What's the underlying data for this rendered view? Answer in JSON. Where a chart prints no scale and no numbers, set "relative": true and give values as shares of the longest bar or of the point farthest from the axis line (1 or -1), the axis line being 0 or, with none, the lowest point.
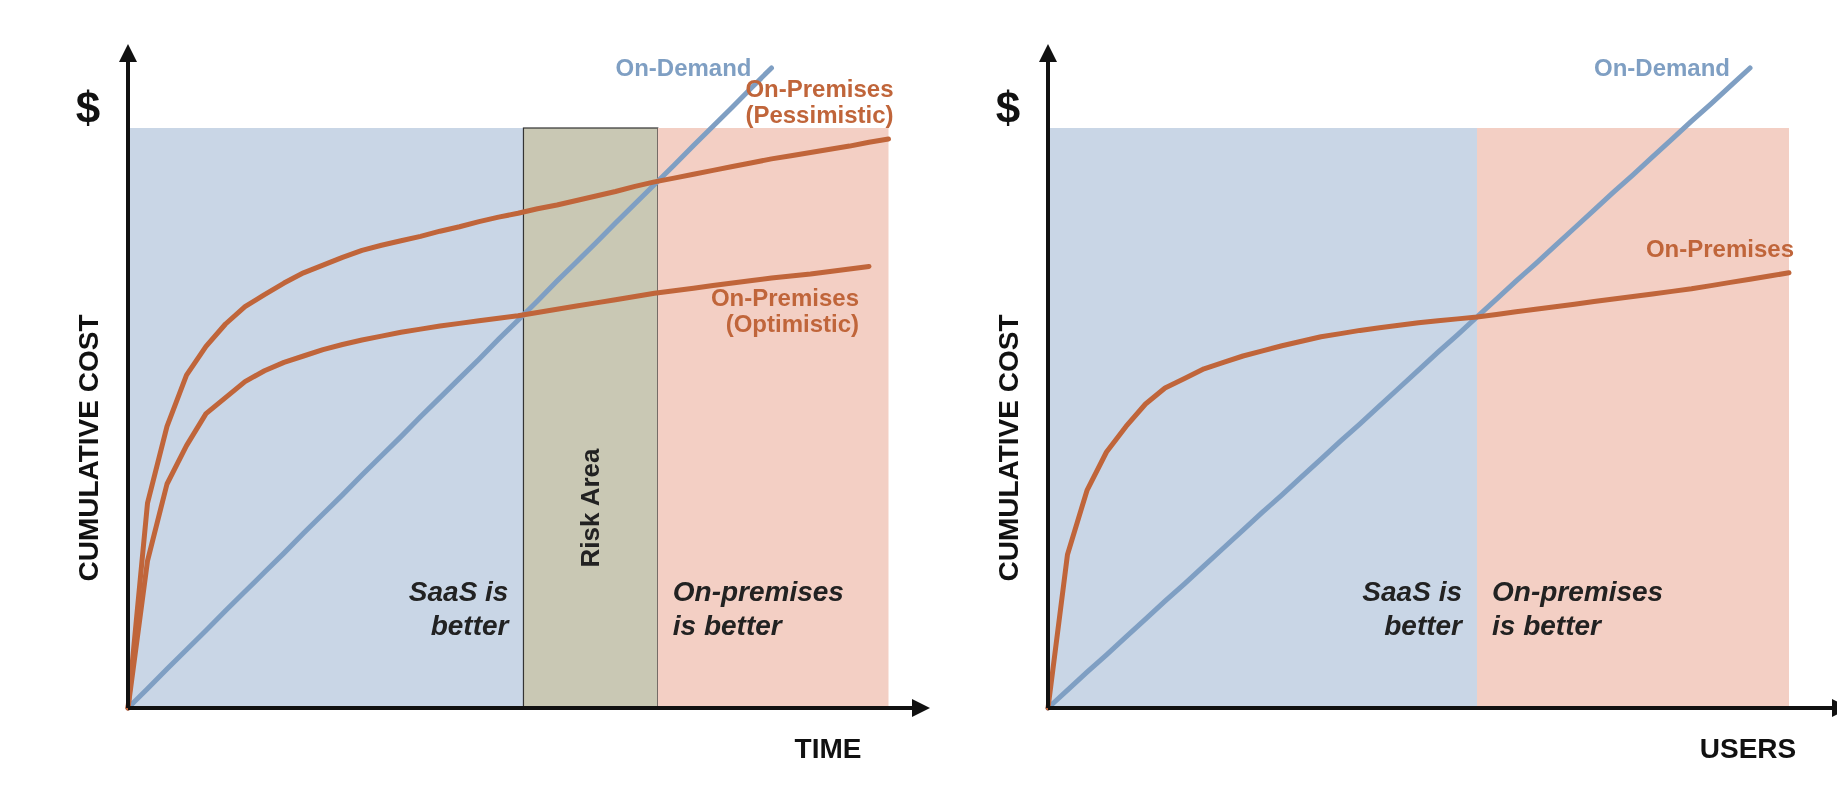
{
  "chart_data": [
    {
      "type": "line",
      "relative": true,
      "xlabel": "TIME",
      "ylabel": "CUMULATIVE COST",
      "annotations": [
        "$",
        "SaaS is better",
        "Risk Area",
        "On-premises is better"
      ],
      "marker": "none",
      "line_style": "solid",
      "categories": [
        null,
        null,
        null,
        null,
        null,
        null,
        null,
        null,
        null,
        null,
        null,
        null,
        null,
        null,
        null,
        null,
        null,
        null,
        null,
        null,
        null,
        null,
        null,
        null,
        null,
        null,
        null,
        null,
        null,
        null,
        null,
        null,
        null,
        null,
        null,
        null,
        null,
        null,
        null,
        null,
        null
      ],
      "series": [
        {
          "name": "On-Demand",
          "color": "#7f9fc3",
          "values": [
            0,
            0.03,
            0.061,
            0.091,
            0.121,
            0.152,
            0.182,
            0.212,
            0.242,
            0.273,
            0.303,
            0.333,
            0.364,
            0.394,
            0.424,
            0.455,
            0.485,
            0.515,
            0.545,
            0.576,
            0.606,
            0.636,
            0.667,
            0.697,
            0.727,
            0.758,
            0.788,
            0.818,
            0.848,
            0.879,
            0.909,
            0.939,
            0.97,
            1,
            null,
            null,
            null,
            null,
            null,
            null,
            null
          ]
        },
        {
          "name": "On-Premises (Pessimistic)",
          "color": "#c0653a",
          "values": [
            0,
            0.32,
            0.44,
            0.52,
            0.565,
            0.6,
            0.627,
            0.646,
            0.664,
            0.68,
            0.692,
            0.704,
            0.715,
            0.723,
            0.73,
            0.737,
            0.745,
            0.752,
            0.76,
            0.767,
            0.773,
            0.78,
            0.786,
            0.793,
            0.8,
            0.807,
            0.815,
            0.822,
            0.828,
            0.834,
            0.84,
            0.846,
            0.852,
            0.858,
            0.863,
            0.868,
            0.873,
            0.878,
            0.884,
            0.889,
            null
          ]
        },
        {
          "name": "On-Premises (Optimistic)",
          "color": "#c0653a",
          "values": [
            0,
            0.23,
            0.35,
            0.41,
            0.46,
            0.485,
            0.51,
            0.527,
            0.54,
            0.55,
            0.56,
            0.568,
            0.575,
            0.581,
            0.587,
            0.592,
            0.597,
            0.601,
            0.605,
            0.609,
            0.613,
            0.618,
            0.623,
            0.628,
            0.633,
            0.638,
            0.643,
            0.648,
            0.652,
            0.656,
            0.66,
            0.664,
            0.668,
            0.672,
            0.675,
            0.678,
            0.682,
            0.686,
            0.69,
            null,
            null
          ]
        }
      ]
    },
    {
      "type": "line",
      "relative": true,
      "xlabel": "USERS",
      "ylabel": "CUMULATIVE COST",
      "annotations": [
        "$",
        "SaaS is better",
        "On-premises is better"
      ],
      "marker": "none",
      "line_style": "solid",
      "categories": [
        null,
        null,
        null,
        null,
        null,
        null,
        null,
        null,
        null,
        null,
        null,
        null,
        null,
        null,
        null,
        null,
        null,
        null,
        null,
        null,
        null,
        null,
        null,
        null,
        null,
        null,
        null,
        null,
        null,
        null,
        null,
        null,
        null,
        null,
        null,
        null,
        null,
        null,
        null,
        null,
        null
      ],
      "series": [
        {
          "name": "On-Demand",
          "color": "#7f9fc3",
          "values": [
            0,
            0.028,
            0.056,
            0.083,
            0.111,
            0.139,
            0.167,
            0.194,
            0.222,
            0.25,
            0.278,
            0.306,
            0.333,
            0.361,
            0.389,
            0.417,
            0.444,
            0.472,
            0.5,
            0.528,
            0.556,
            0.583,
            0.611,
            0.639,
            0.667,
            0.694,
            0.722,
            0.75,
            0.778,
            0.806,
            0.833,
            0.861,
            0.889,
            0.917,
            0.944,
            0.972,
            1,
            null,
            null,
            null,
            null
          ]
        },
        {
          "name": "On-Premises",
          "color": "#c0653a",
          "values": [
            0,
            0.24,
            0.34,
            0.4,
            0.44,
            0.475,
            0.5,
            0.515,
            0.53,
            0.54,
            0.55,
            0.558,
            0.566,
            0.573,
            0.58,
            0.585,
            0.59,
            0.594,
            0.598,
            0.602,
            0.605,
            0.608,
            0.611,
            0.615,
            0.619,
            0.623,
            0.627,
            0.631,
            0.635,
            0.639,
            0.643,
            0.647,
            0.651,
            0.655,
            0.66,
            0.665,
            0.67,
            0.675,
            0.68,
            null,
            null
          ]
        }
      ]
    }
  ]
}
